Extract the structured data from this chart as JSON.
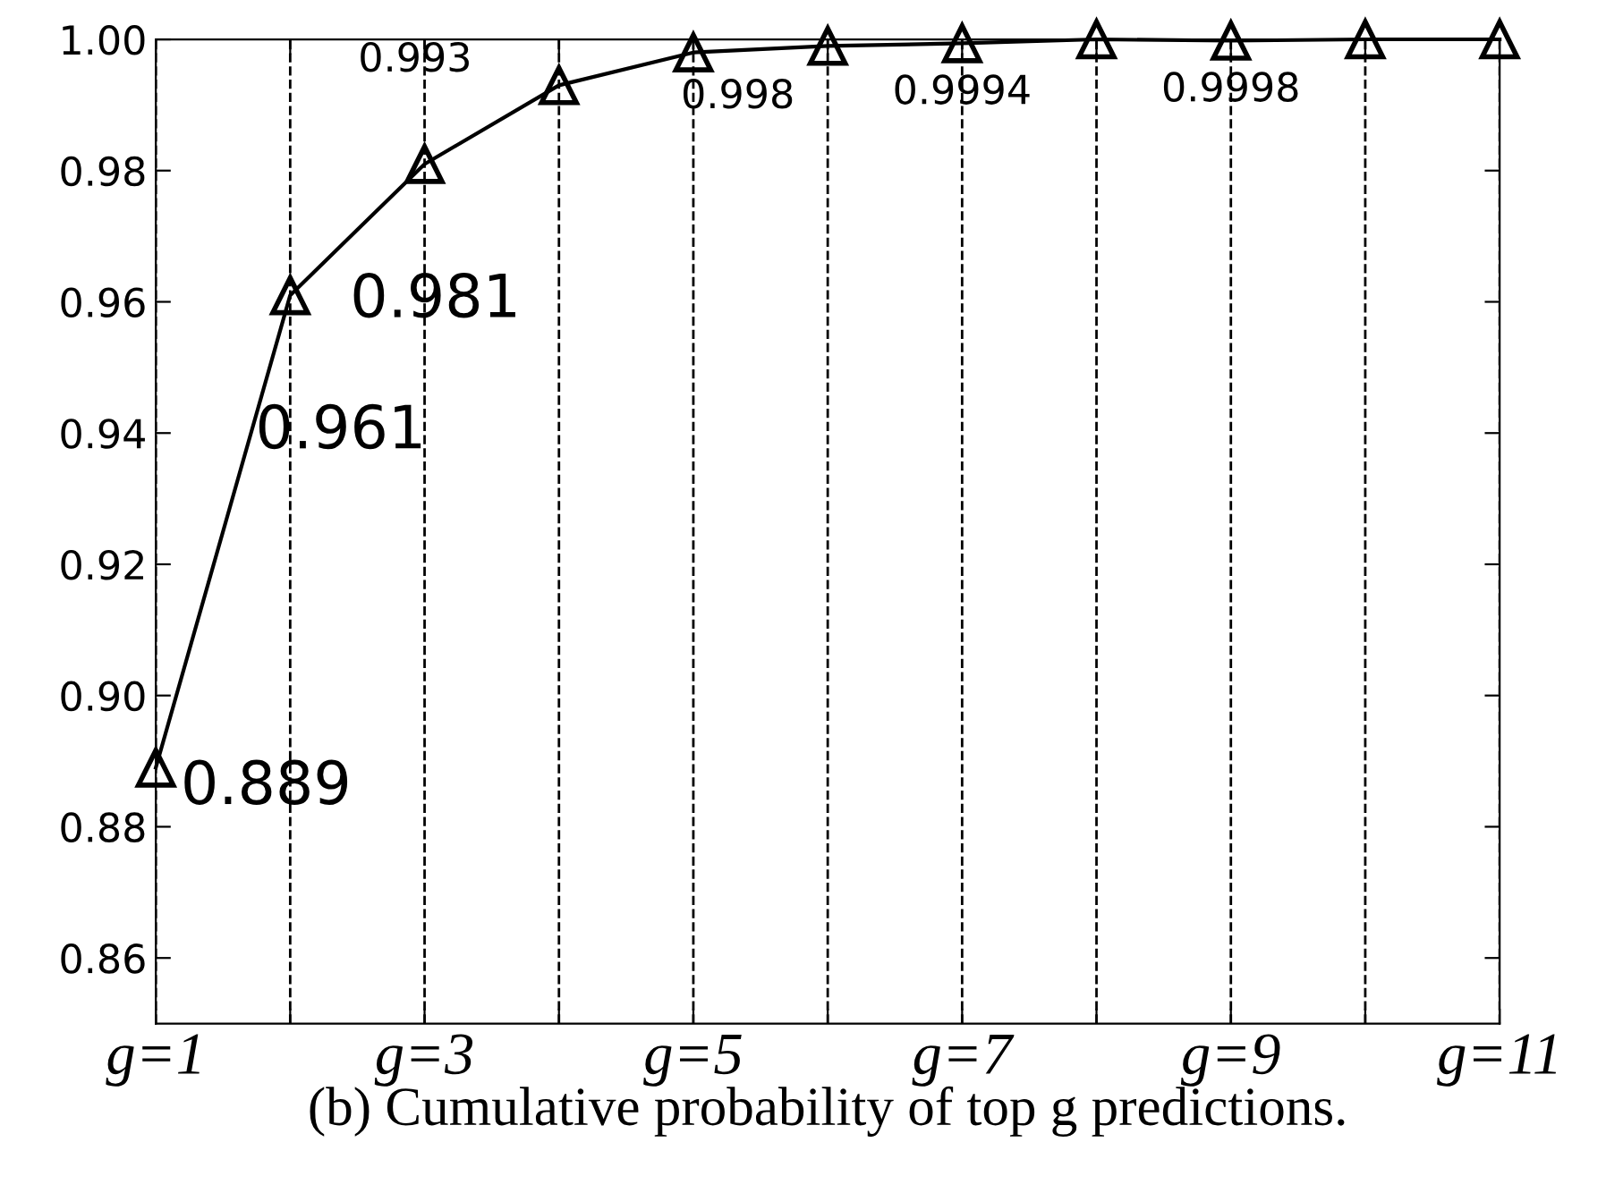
{
  "chart_data": {
    "type": "line",
    "x": [
      1,
      2,
      3,
      4,
      5,
      6,
      7,
      8,
      9,
      10,
      11
    ],
    "series": [
      {
        "color": "#000000",
        "values": [
          0.889,
          0.961,
          0.981,
          0.993,
          0.998,
          0.999,
          0.9994,
          1.0,
          0.9998,
          1.0,
          1.0
        ]
      }
    ],
    "marker": "triangle",
    "line_style": "solid",
    "grid": "x",
    "xlim": [
      1,
      11
    ],
    "ylim": [
      0.85,
      1.0
    ],
    "xticks": [
      {
        "value": 1,
        "label": "g=1"
      },
      {
        "value": 2,
        "label": null
      },
      {
        "value": 3,
        "label": "g=3"
      },
      {
        "value": 4,
        "label": null
      },
      {
        "value": 5,
        "label": "g=5"
      },
      {
        "value": 6,
        "label": null
      },
      {
        "value": 7,
        "label": "g=7"
      },
      {
        "value": 8,
        "label": null
      },
      {
        "value": 9,
        "label": "g=9"
      },
      {
        "value": 10,
        "label": null
      },
      {
        "value": 11,
        "label": "g=11"
      }
    ],
    "yticks": [
      {
        "value": 0.86,
        "label": "0.86"
      },
      {
        "value": 0.88,
        "label": "0.88"
      },
      {
        "value": 0.9,
        "label": "0.90"
      },
      {
        "value": 0.92,
        "label": "0.92"
      },
      {
        "value": 0.94,
        "label": "0.94"
      },
      {
        "value": 0.96,
        "label": "0.96"
      },
      {
        "value": 0.98,
        "label": "0.98"
      },
      {
        "value": 1.0,
        "label": "1.00"
      }
    ],
    "xlabel": "(b) Cumulative probability of top g predictions.",
    "annotations": [
      {
        "text": "0.889",
        "x": 1,
        "y": 0.889
      },
      {
        "text": "0.961",
        "x": 2,
        "y": 0.961
      },
      {
        "text": "0.981",
        "x": 3,
        "y": 0.981
      },
      {
        "text": "0.993",
        "x": 4,
        "y": 0.993
      },
      {
        "text": "0.998",
        "x": 5,
        "y": 0.998
      },
      {
        "text": "0.9994",
        "x": 7,
        "y": 0.9994
      },
      {
        "text": "0.9998",
        "x": 9,
        "y": 0.9998
      }
    ]
  }
}
